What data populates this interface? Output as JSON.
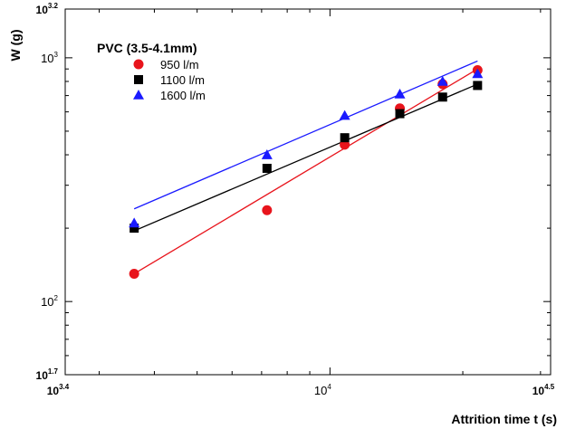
{
  "chart_data": {
    "type": "scatter",
    "title": "",
    "xlabel": "Attrition time t (s)",
    "ylabel": "W (g)",
    "x_scale": "log",
    "y_scale": "log",
    "xlim": [
      2512,
      31623
    ],
    "ylim": [
      50.1,
      1585
    ],
    "grid": false,
    "legend": {
      "title": "PVC (3.5-4.1mm)",
      "placement": "top-left"
    },
    "x_ticks": [
      {
        "base": "10",
        "exp": "3.4",
        "value": 2512,
        "bold": true
      },
      {
        "base": "10",
        "exp": "4",
        "value": 10000,
        "bold": false
      },
      {
        "base": "10",
        "exp": "4.5",
        "value": 31623,
        "bold": true
      }
    ],
    "y_ticks": [
      {
        "base": "10",
        "exp": "1.7",
        "value": 50.1,
        "bold": true
      },
      {
        "base": "10",
        "exp": "2",
        "value": 100,
        "bold": false
      },
      {
        "base": "10",
        "exp": "3",
        "value": 1000,
        "bold": false
      },
      {
        "base": "10",
        "exp": "3.2",
        "value": 1585,
        "bold": true
      }
    ],
    "series": [
      {
        "name": "950 l/m",
        "marker": "circle",
        "color": "#e8141c",
        "points": [
          [
            3600,
            130
          ],
          [
            7200,
            237
          ],
          [
            10800,
            440
          ],
          [
            14400,
            620
          ],
          [
            18000,
            780
          ],
          [
            21600,
            890
          ]
        ],
        "fit": [
          [
            3600,
            130
          ],
          [
            21600,
            900
          ]
        ]
      },
      {
        "name": "1100 l/m",
        "marker": "square",
        "color": "#000000",
        "points": [
          [
            3600,
            200
          ],
          [
            7200,
            352
          ],
          [
            10800,
            470
          ],
          [
            14400,
            590
          ],
          [
            18000,
            690
          ],
          [
            21600,
            770
          ]
        ],
        "fit": [
          [
            3600,
            195
          ],
          [
            21600,
            780
          ]
        ]
      },
      {
        "name": "1600 l/m",
        "marker": "triangle",
        "color": "#1a1aff",
        "points": [
          [
            3600,
            210
          ],
          [
            7200,
            400
          ],
          [
            10800,
            580
          ],
          [
            14400,
            710
          ],
          [
            18000,
            800
          ],
          [
            21600,
            860
          ]
        ],
        "fit": [
          [
            3600,
            240
          ],
          [
            21600,
            970
          ]
        ]
      }
    ]
  }
}
